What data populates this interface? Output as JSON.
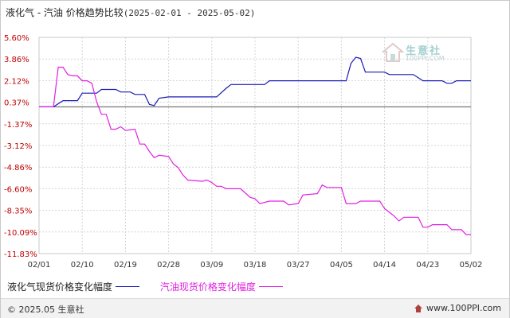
{
  "title": {
    "text": "液化气 - 汽油 价格趋势比较",
    "range": "(2025-02-01 - 2025-05-02)"
  },
  "chart_data": {
    "type": "line",
    "title": "液化气 - 汽油 价格趋势比较(2025-02-01 - 2025-05-02)",
    "y_ticks": [
      "5.60%",
      "3.86%",
      "2.12%",
      "0.37%",
      "-1.37%",
      "-3.12%",
      "-4.86%",
      "-6.60%",
      "-8.35%",
      "-10.09%",
      "-11.83%"
    ],
    "ylim": [
      -11.83,
      5.6
    ],
    "x_ticks": [
      "02/01",
      "02/10",
      "02/19",
      "02/28",
      "03/09",
      "03/18",
      "03/27",
      "04/05",
      "04/14",
      "04/23",
      "05/02"
    ],
    "x_range": [
      "2025-02-01",
      "2025-05-02"
    ],
    "grid": true,
    "legend_position": "bottom",
    "series": [
      {
        "name": "液化气现货价格变化幅度",
        "color": "#1a1ab4",
        "points": [
          [
            "2025-02-01",
            0
          ],
          [
            "2025-02-04",
            0
          ],
          [
            "2025-02-06",
            0.5
          ],
          [
            "2025-02-09",
            0.5
          ],
          [
            "2025-02-10",
            1.1
          ],
          [
            "2025-02-13",
            1.1
          ],
          [
            "2025-02-14",
            1.4
          ],
          [
            "2025-02-17",
            1.4
          ],
          [
            "2025-02-18",
            1.2
          ],
          [
            "2025-02-20",
            1.2
          ],
          [
            "2025-02-21",
            1.0
          ],
          [
            "2025-02-23",
            1.0
          ],
          [
            "2025-02-24",
            0.2
          ],
          [
            "2025-02-25",
            0.1
          ],
          [
            "2025-02-26",
            0.7
          ],
          [
            "2025-02-28",
            0.8
          ],
          [
            "2025-03-10",
            0.8
          ],
          [
            "2025-03-12",
            1.5
          ],
          [
            "2025-03-13",
            1.8
          ],
          [
            "2025-03-20",
            1.8
          ],
          [
            "2025-03-21",
            2.1
          ],
          [
            "2025-04-06",
            2.1
          ],
          [
            "2025-04-07",
            3.5
          ],
          [
            "2025-04-08",
            4.0
          ],
          [
            "2025-04-09",
            3.9
          ],
          [
            "2025-04-10",
            2.8
          ],
          [
            "2025-04-14",
            2.8
          ],
          [
            "2025-04-15",
            2.6
          ],
          [
            "2025-04-20",
            2.6
          ],
          [
            "2025-04-22",
            2.1
          ],
          [
            "2025-04-26",
            2.1
          ],
          [
            "2025-04-27",
            1.9
          ],
          [
            "2025-04-28",
            1.9
          ],
          [
            "2025-04-29",
            2.1
          ],
          [
            "2025-05-02",
            2.1
          ]
        ]
      },
      {
        "name": "汽油现货价格变化幅度",
        "color": "#e020e0",
        "points": [
          [
            "2025-02-01",
            0
          ],
          [
            "2025-02-04",
            0
          ],
          [
            "2025-02-05",
            3.2
          ],
          [
            "2025-02-06",
            3.2
          ],
          [
            "2025-02-07",
            2.6
          ],
          [
            "2025-02-08",
            2.5
          ],
          [
            "2025-02-09",
            2.5
          ],
          [
            "2025-02-10",
            2.1
          ],
          [
            "2025-02-11",
            2.1
          ],
          [
            "2025-02-12",
            1.9
          ],
          [
            "2025-02-13",
            0.4
          ],
          [
            "2025-02-14",
            -0.6
          ],
          [
            "2025-02-15",
            -0.6
          ],
          [
            "2025-02-16",
            -1.8
          ],
          [
            "2025-02-17",
            -1.8
          ],
          [
            "2025-02-18",
            -1.6
          ],
          [
            "2025-02-19",
            -1.9
          ],
          [
            "2025-02-21",
            -1.8
          ],
          [
            "2025-02-22",
            -3.0
          ],
          [
            "2025-02-23",
            -3.0
          ],
          [
            "2025-02-24",
            -3.6
          ],
          [
            "2025-02-25",
            -4.1
          ],
          [
            "2025-02-26",
            -3.9
          ],
          [
            "2025-02-28",
            -4.0
          ],
          [
            "2025-03-01",
            -4.6
          ],
          [
            "2025-03-02",
            -4.9
          ],
          [
            "2025-03-03",
            -5.5
          ],
          [
            "2025-03-04",
            -5.9
          ],
          [
            "2025-03-07",
            -6.0
          ],
          [
            "2025-03-08",
            -5.9
          ],
          [
            "2025-03-09",
            -6.1
          ],
          [
            "2025-03-10",
            -6.4
          ],
          [
            "2025-03-11",
            -6.4
          ],
          [
            "2025-03-12",
            -6.6
          ],
          [
            "2025-03-15",
            -6.6
          ],
          [
            "2025-03-17",
            -7.3
          ],
          [
            "2025-03-18",
            -7.4
          ],
          [
            "2025-03-19",
            -7.8
          ],
          [
            "2025-03-21",
            -7.6
          ],
          [
            "2025-03-24",
            -7.6
          ],
          [
            "2025-03-25",
            -7.9
          ],
          [
            "2025-03-27",
            -7.8
          ],
          [
            "2025-03-28",
            -7.1
          ],
          [
            "2025-03-31",
            -7.0
          ],
          [
            "2025-04-01",
            -6.3
          ],
          [
            "2025-04-02",
            -6.5
          ],
          [
            "2025-04-05",
            -6.5
          ],
          [
            "2025-04-06",
            -7.8
          ],
          [
            "2025-04-08",
            -7.8
          ],
          [
            "2025-04-09",
            -7.6
          ],
          [
            "2025-04-13",
            -7.6
          ],
          [
            "2025-04-14",
            -8.2
          ],
          [
            "2025-04-15",
            -8.5
          ],
          [
            "2025-04-16",
            -8.8
          ],
          [
            "2025-04-17",
            -9.2
          ],
          [
            "2025-04-18",
            -8.9
          ],
          [
            "2025-04-21",
            -8.9
          ],
          [
            "2025-04-22",
            -9.7
          ],
          [
            "2025-04-23",
            -9.7
          ],
          [
            "2025-04-24",
            -9.5
          ],
          [
            "2025-04-27",
            -9.5
          ],
          [
            "2025-04-28",
            -9.9
          ],
          [
            "2025-04-30",
            -9.9
          ],
          [
            "2025-05-01",
            -10.3
          ],
          [
            "2025-05-02",
            -10.3
          ]
        ]
      }
    ]
  },
  "legend": {
    "items": [
      {
        "label": "液化气现货价格变化幅度",
        "color": "#1a1ab4"
      },
      {
        "label": "汽油现货价格变化幅度",
        "color": "#e020e0"
      }
    ]
  },
  "watermark": {
    "name": "生意社",
    "url": "100PPI.COM"
  },
  "footer": {
    "copyright": "© 2025.05 生意社",
    "site": "www.100PPI.com"
  }
}
